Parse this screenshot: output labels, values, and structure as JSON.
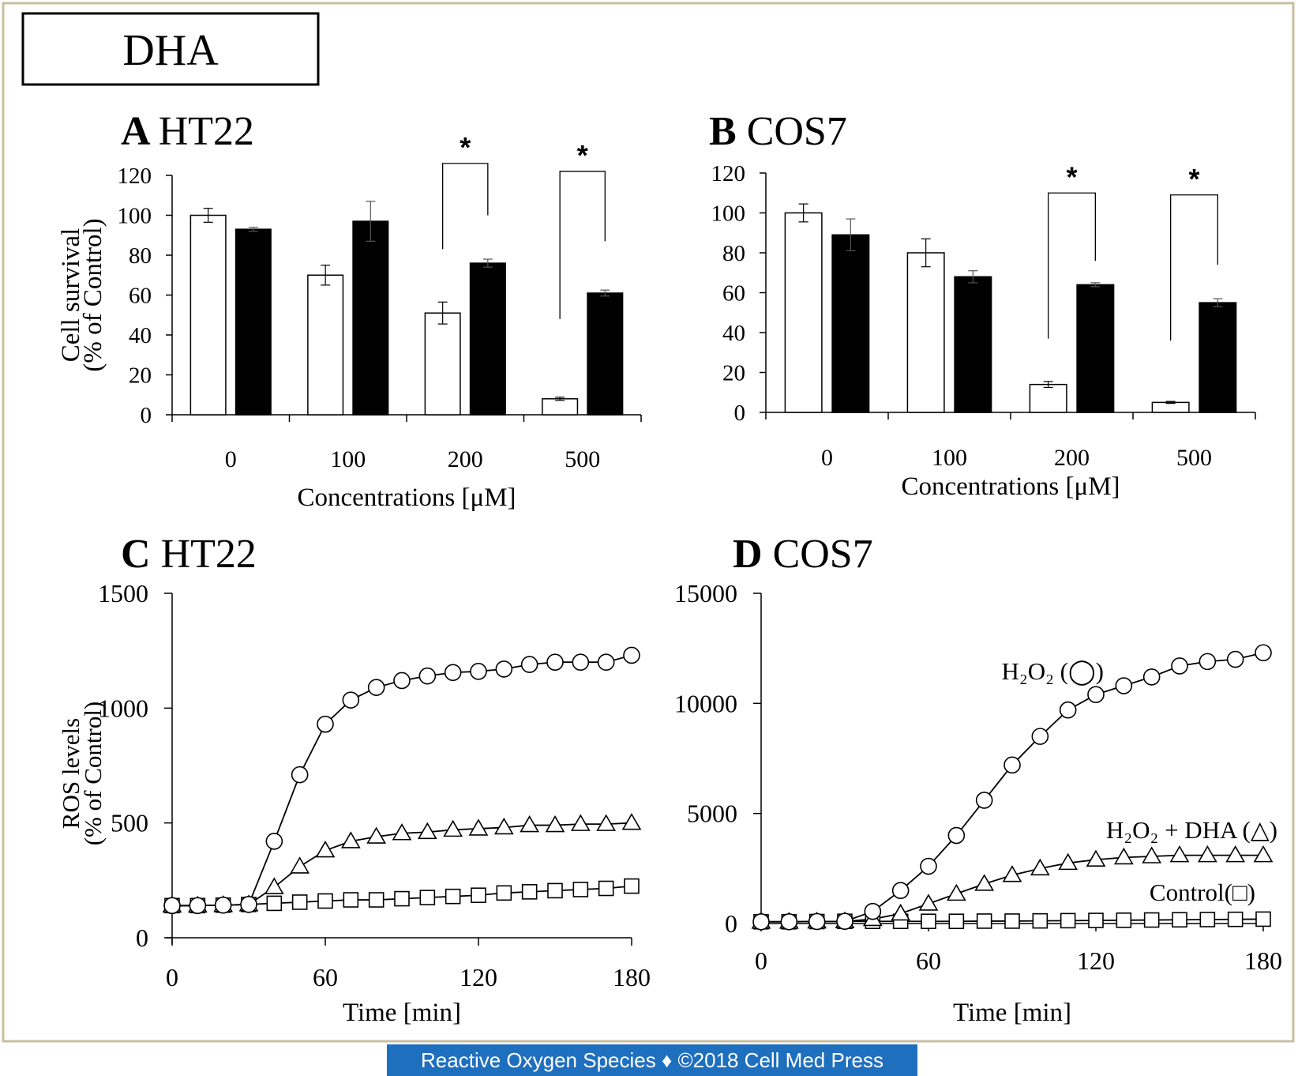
{
  "header_label": "DHA",
  "footer_text": "Reactive Oxygen Species ♦ ©2018 Cell Med Press",
  "colors": {
    "frame": "#c8bfa0",
    "footer_bg": "#1f6fbf",
    "footer_text": "#ffffff",
    "bar_open": "#ffffff",
    "bar_filled": "#000000"
  },
  "chart_data": [
    {
      "id": "A",
      "type": "bar",
      "panel_letter": "A",
      "panel_title": "HT22",
      "categories": [
        "0",
        "100",
        "200",
        "500"
      ],
      "series": [
        {
          "style": "open",
          "values": [
            100,
            70,
            51,
            8
          ],
          "errors": [
            3.5,
            5,
            5.5,
            0.8
          ]
        },
        {
          "style": "filled",
          "values": [
            93,
            97,
            76,
            61
          ],
          "errors": [
            1,
            10,
            2,
            1.5
          ]
        }
      ],
      "ylabel_line1": "Cell survival",
      "ylabel_line2": "(% of Control)",
      "xlabel": "Concentrations [μM]",
      "ylim": [
        0,
        120
      ],
      "yticks": [
        0,
        20,
        40,
        60,
        80,
        100,
        120
      ],
      "significance": [
        {
          "category": "200",
          "label": "*",
          "bracket_top": 126,
          "left_bottom": 83,
          "right_bottom": 100
        },
        {
          "category": "500",
          "label": "*",
          "bracket_top": 122,
          "left_bottom": 48,
          "right_bottom": 87
        }
      ]
    },
    {
      "id": "B",
      "type": "bar",
      "panel_letter": "B",
      "panel_title": "COS7",
      "categories": [
        "0",
        "100",
        "200",
        "500"
      ],
      "series": [
        {
          "style": "open",
          "values": [
            100,
            80,
            14,
            5
          ],
          "errors": [
            4.5,
            7,
            1.5,
            0.5
          ]
        },
        {
          "style": "filled",
          "values": [
            89,
            68,
            64,
            55
          ],
          "errors": [
            8,
            3,
            1,
            2
          ]
        }
      ],
      "ylabel_line1": "",
      "ylabel_line2": "",
      "xlabel": "Concentrations [μM]",
      "ylim": [
        0,
        120
      ],
      "yticks": [
        0,
        20,
        40,
        60,
        80,
        100,
        120
      ],
      "significance": [
        {
          "category": "200",
          "label": "*",
          "bracket_top": 110,
          "left_bottom": 37,
          "right_bottom": 76
        },
        {
          "category": "500",
          "label": "*",
          "bracket_top": 109,
          "left_bottom": 36,
          "right_bottom": 74
        }
      ]
    },
    {
      "id": "C",
      "type": "line",
      "panel_letter": "C",
      "panel_title": "HT22",
      "x": [
        0,
        10,
        20,
        30,
        40,
        50,
        60,
        70,
        80,
        90,
        100,
        110,
        120,
        130,
        140,
        150,
        160,
        170,
        180
      ],
      "series": [
        {
          "marker": "circle",
          "values": [
            140,
            140,
            142,
            145,
            420,
            710,
            930,
            1035,
            1090,
            1120,
            1140,
            1155,
            1160,
            1170,
            1190,
            1200,
            1200,
            1200,
            1230
          ]
        },
        {
          "marker": "triangle",
          "values": [
            140,
            140,
            142,
            145,
            220,
            310,
            380,
            420,
            440,
            455,
            460,
            470,
            475,
            480,
            490,
            490,
            495,
            495,
            500
          ]
        },
        {
          "marker": "square",
          "values": [
            140,
            140,
            142,
            145,
            150,
            155,
            160,
            165,
            165,
            170,
            175,
            180,
            185,
            195,
            200,
            205,
            210,
            215,
            225
          ]
        }
      ],
      "ylabel_line1": "ROS levels",
      "ylabel_line2": "(% of Control)",
      "xlabel": "Time [min]",
      "xlim": [
        0,
        180
      ],
      "xticks": [
        0,
        60,
        120,
        180
      ],
      "ylim": [
        0,
        1500
      ],
      "yticks": [
        0,
        500,
        1000,
        1500
      ]
    },
    {
      "id": "D",
      "type": "line",
      "panel_letter": "D",
      "panel_title": "COS7",
      "x": [
        0,
        10,
        20,
        30,
        40,
        50,
        60,
        70,
        80,
        90,
        100,
        110,
        120,
        130,
        140,
        150,
        160,
        170,
        180
      ],
      "series": [
        {
          "marker": "circle",
          "legend_label": "H₂O₂ (◯)",
          "values": [
            80,
            80,
            90,
            100,
            550,
            1500,
            2600,
            4000,
            5600,
            7200,
            8500,
            9700,
            10400,
            10800,
            11200,
            11700,
            11900,
            12000,
            12300
          ]
        },
        {
          "marker": "triangle",
          "legend_label": "H₂O₂ + DHA (△)",
          "values": [
            80,
            80,
            90,
            100,
            200,
            450,
            900,
            1350,
            1800,
            2200,
            2500,
            2750,
            2900,
            3000,
            3050,
            3100,
            3100,
            3100,
            3100
          ]
        },
        {
          "marker": "square",
          "legend_label": "Control(□)",
          "values": [
            80,
            80,
            90,
            100,
            100,
            100,
            100,
            100,
            110,
            110,
            120,
            130,
            140,
            150,
            160,
            170,
            180,
            190,
            200
          ]
        }
      ],
      "ylabel_line1": "",
      "ylabel_line2": "",
      "xlabel": "Time [min]",
      "xlim": [
        0,
        180
      ],
      "xticks": [
        0,
        60,
        120,
        180
      ],
      "ylim": [
        0,
        15000
      ],
      "yticks": [
        0,
        5000,
        10000,
        15000
      ]
    }
  ]
}
